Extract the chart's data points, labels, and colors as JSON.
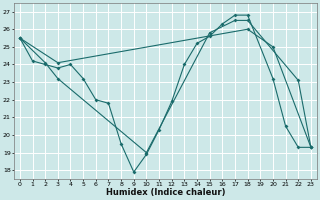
{
  "xlabel": "Humidex (Indice chaleur)",
  "bg_color": "#cde8e8",
  "line_color": "#1a6b6b",
  "grid_color": "#ffffff",
  "xlim": [
    -0.5,
    23.5
  ],
  "ylim": [
    17.5,
    27.5
  ],
  "xticks": [
    0,
    1,
    2,
    3,
    4,
    5,
    6,
    7,
    8,
    9,
    10,
    11,
    12,
    13,
    14,
    15,
    16,
    17,
    18,
    19,
    20,
    21,
    22,
    23
  ],
  "yticks": [
    18,
    19,
    20,
    21,
    22,
    23,
    24,
    25,
    26,
    27
  ],
  "series1": [
    [
      0,
      25.5
    ],
    [
      1,
      24.2
    ],
    [
      2,
      24.0
    ],
    [
      3,
      23.8
    ],
    [
      4,
      24.0
    ],
    [
      5,
      23.2
    ],
    [
      6,
      22.0
    ],
    [
      7,
      21.8
    ],
    [
      8,
      19.5
    ],
    [
      9,
      17.9
    ],
    [
      10,
      18.9
    ],
    [
      11,
      20.3
    ],
    [
      12,
      21.9
    ],
    [
      13,
      24.0
    ],
    [
      14,
      25.2
    ],
    [
      15,
      25.6
    ],
    [
      16,
      26.3
    ],
    [
      17,
      26.8
    ],
    [
      18,
      26.8
    ],
    [
      20,
      23.2
    ],
    [
      21,
      20.5
    ],
    [
      22,
      19.3
    ],
    [
      23,
      19.3
    ]
  ],
  "series2": [
    [
      0,
      25.5
    ],
    [
      2,
      24.1
    ],
    [
      3,
      23.2
    ],
    [
      10,
      19.0
    ],
    [
      15,
      25.8
    ],
    [
      17,
      26.5
    ],
    [
      18,
      26.5
    ],
    [
      22,
      23.1
    ],
    [
      23,
      19.3
    ]
  ],
  "series3": [
    [
      0,
      25.5
    ],
    [
      3,
      24.1
    ],
    [
      18,
      26.0
    ],
    [
      20,
      25.0
    ],
    [
      23,
      19.3
    ]
  ]
}
